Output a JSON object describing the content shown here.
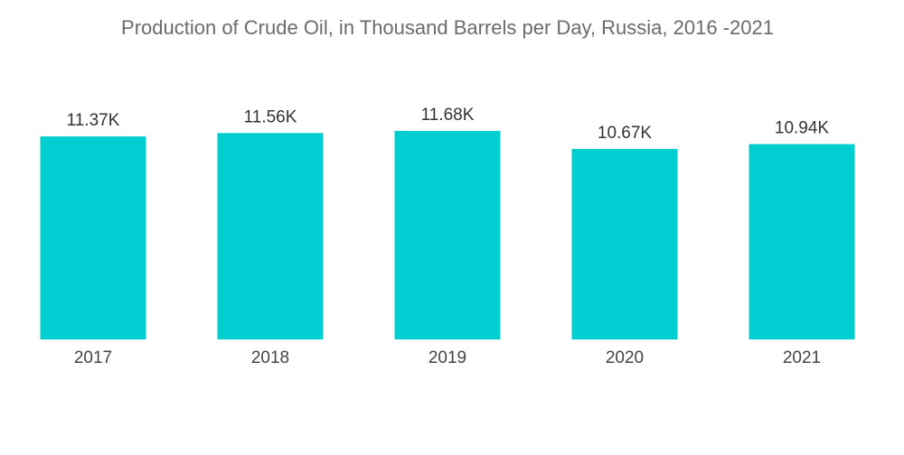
{
  "chart_data": {
    "type": "bar",
    "title": "Production of Crude Oil, in Thousand Barrels per Day, Russia, 2016 -2021",
    "categories": [
      "2017",
      "2018",
      "2019",
      "2020",
      "2021"
    ],
    "values": [
      11370,
      11560,
      11680,
      10670,
      10940
    ],
    "value_labels": [
      "11.37K",
      "11.56K",
      "11.68K",
      "10.67K",
      "10.94K"
    ],
    "color": "#00ced1"
  }
}
